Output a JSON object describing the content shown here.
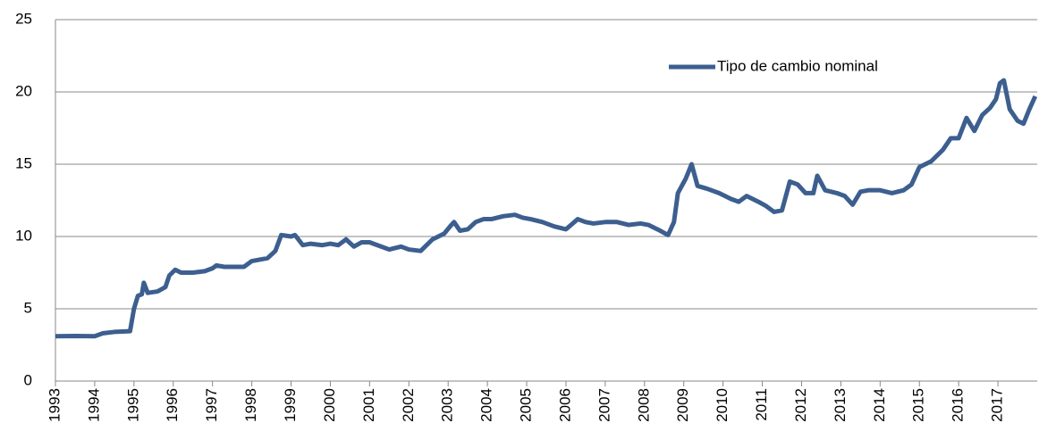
{
  "chart_data": {
    "type": "line",
    "series": [
      {
        "name": "Tipo de cambio nominal",
        "color": "#3c5f8f",
        "x": [
          1993.0,
          1993.5,
          1994.0,
          1994.2,
          1994.5,
          1994.9,
          1995.0,
          1995.1,
          1995.2,
          1995.25,
          1995.35,
          1995.6,
          1995.8,
          1995.9,
          1996.05,
          1996.2,
          1996.5,
          1996.8,
          1997.0,
          1997.1,
          1997.3,
          1997.5,
          1997.8,
          1998.0,
          1998.2,
          1998.4,
          1998.6,
          1998.75,
          1999.0,
          1999.1,
          1999.3,
          1999.5,
          1999.8,
          2000.0,
          2000.2,
          2000.4,
          2000.6,
          2000.8,
          2001.0,
          2001.2,
          2001.5,
          2001.8,
          2002.0,
          2002.3,
          2002.6,
          2002.9,
          2003.05,
          2003.15,
          2003.3,
          2003.5,
          2003.7,
          2003.9,
          2004.1,
          2004.4,
          2004.7,
          2004.9,
          2005.1,
          2005.4,
          2005.7,
          2006.0,
          2006.3,
          2006.5,
          2006.7,
          2007.0,
          2007.3,
          2007.6,
          2007.9,
          2008.1,
          2008.4,
          2008.6,
          2008.75,
          2008.85,
          2009.05,
          2009.2,
          2009.35,
          2009.6,
          2009.9,
          2010.2,
          2010.4,
          2010.6,
          2010.9,
          2011.1,
          2011.3,
          2011.5,
          2011.7,
          2011.9,
          2012.1,
          2012.3,
          2012.4,
          2012.6,
          2012.9,
          2013.1,
          2013.3,
          2013.5,
          2013.7,
          2014.0,
          2014.3,
          2014.6,
          2014.8,
          2015.0,
          2015.3,
          2015.6,
          2015.8,
          2016.0,
          2016.2,
          2016.4,
          2016.6,
          2016.8,
          2016.95,
          2017.05,
          2017.15,
          2017.3,
          2017.5,
          2017.65,
          2017.8,
          2017.95
        ],
        "values": [
          3.1,
          3.12,
          3.1,
          3.3,
          3.4,
          3.45,
          5.0,
          5.9,
          6.0,
          6.8,
          6.1,
          6.2,
          6.5,
          7.3,
          7.7,
          7.5,
          7.5,
          7.6,
          7.8,
          8.0,
          7.9,
          7.9,
          7.9,
          8.3,
          8.4,
          8.5,
          9.0,
          10.1,
          10.0,
          10.1,
          9.4,
          9.5,
          9.4,
          9.5,
          9.4,
          9.8,
          9.3,
          9.6,
          9.6,
          9.4,
          9.1,
          9.3,
          9.1,
          9.0,
          9.8,
          10.2,
          10.7,
          11.0,
          10.4,
          10.5,
          11.0,
          11.2,
          11.2,
          11.4,
          11.5,
          11.3,
          11.2,
          11.0,
          10.7,
          10.5,
          11.2,
          11.0,
          10.9,
          11.0,
          11.0,
          10.8,
          10.9,
          10.8,
          10.4,
          10.1,
          11.0,
          13.0,
          14.0,
          15.0,
          13.5,
          13.3,
          13.0,
          12.6,
          12.4,
          12.8,
          12.4,
          12.1,
          11.7,
          11.8,
          13.8,
          13.6,
          13.0,
          13.0,
          14.2,
          13.2,
          13.0,
          12.8,
          12.2,
          13.1,
          13.2,
          13.2,
          13.0,
          13.2,
          13.6,
          14.8,
          15.2,
          16.0,
          16.8,
          16.8,
          18.2,
          17.3,
          18.4,
          18.9,
          19.5,
          20.6,
          20.8,
          18.8,
          18.0,
          17.8,
          18.8,
          19.7
        ]
      }
    ],
    "xlim": [
      1993,
      2018
    ],
    "xticks": [
      1993,
      1994,
      1995,
      1996,
      1997,
      1998,
      1999,
      2000,
      2001,
      2002,
      2003,
      2004,
      2005,
      2006,
      2007,
      2008,
      2009,
      2010,
      2011,
      2012,
      2013,
      2014,
      2015,
      2016,
      2017
    ],
    "ylim": [
      0,
      25
    ],
    "yticks": [
      0,
      5,
      10,
      15,
      20,
      25
    ],
    "grid": true,
    "legend": "top-right"
  }
}
